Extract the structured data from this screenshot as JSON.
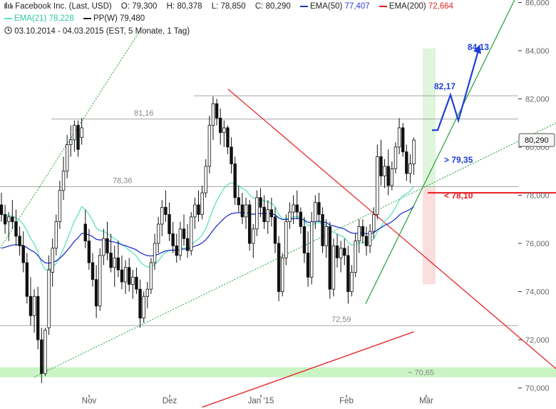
{
  "header": {
    "title": "Facebook Inc. (Last, USD)",
    "open": "O: 79,300",
    "high": "H: 80,378",
    "low": "L: 78,850",
    "close": "C: 80,290",
    "ema50_label": "EMA(50)",
    "ema50_value": "77,407",
    "ema200_label": "EMA(200)",
    "ema200_value": "72,664",
    "ema21_label": "EMA(21)",
    "ema21_value": "78,228",
    "pp_label": "PP(W)",
    "pp_value": "79,480",
    "range": "03.10.2014 - 04.03.2015 (EST, 5 Monate, 1 Tag)"
  },
  "colors": {
    "candle": "#111111",
    "ema21": "#5fe3c3",
    "ema50": "#2233cc",
    "ema200": "#e8191e",
    "channel": "#22a033",
    "trendline": "#e8191e",
    "target": "#1d3fd8",
    "support_zone": "#b8f0b0"
  },
  "chart_data": {
    "type": "candlestick",
    "ylim": [
      69.5,
      86.5
    ],
    "yticks": [
      "70,000",
      "72,000",
      "74,000",
      "76,000",
      "78,000",
      "80,000",
      "82,000",
      "84,000",
      "86,000"
    ],
    "ytick_values": [
      70,
      72,
      74,
      76,
      78,
      80,
      82,
      84,
      86
    ],
    "xticks": [
      "Nov",
      "Dez",
      "Jan '15",
      "Feb",
      "Mär"
    ],
    "last_price_label": "80,290",
    "last_price": 80.29,
    "levels": [
      {
        "label": "81,16",
        "value": 81.16
      },
      {
        "label": "78,36",
        "value": 78.36
      },
      {
        "label": "72,59",
        "value": 72.59
      },
      {
        "label": "~ 70,65",
        "value": 70.65
      }
    ],
    "annotations": [
      {
        "label": "84,13",
        "value": 84.13
      },
      {
        "label": "82,17",
        "value": 82.17
      },
      {
        "label": "> 79,35",
        "value": 79.35
      },
      {
        "label": "< 78,10",
        "value": 78.1
      }
    ],
    "candles": [
      {
        "o": 77.6,
        "h": 78.1,
        "l": 76.9,
        "c": 77.2
      },
      {
        "o": 77.2,
        "h": 77.6,
        "l": 76.4,
        "c": 76.8
      },
      {
        "o": 76.9,
        "h": 77.3,
        "l": 76.1,
        "c": 77.1
      },
      {
        "o": 77.1,
        "h": 77.8,
        "l": 76.6,
        "c": 76.9
      },
      {
        "o": 76.9,
        "h": 77.4,
        "l": 75.9,
        "c": 76.3
      },
      {
        "o": 76.3,
        "h": 76.7,
        "l": 75.5,
        "c": 75.9
      },
      {
        "o": 75.9,
        "h": 76.5,
        "l": 74.8,
        "c": 75.2
      },
      {
        "o": 75.2,
        "h": 75.6,
        "l": 73.5,
        "c": 73.8
      },
      {
        "o": 73.8,
        "h": 74.6,
        "l": 72.6,
        "c": 73.0
      },
      {
        "o": 73.0,
        "h": 74.1,
        "l": 72.3,
        "c": 73.8
      },
      {
        "o": 73.8,
        "h": 74.2,
        "l": 71.6,
        "c": 72.0
      },
      {
        "o": 72.0,
        "h": 72.5,
        "l": 70.2,
        "c": 70.6
      },
      {
        "o": 70.6,
        "h": 72.5,
        "l": 70.5,
        "c": 72.4
      },
      {
        "o": 72.5,
        "h": 75.5,
        "l": 72.2,
        "c": 74.9
      },
      {
        "o": 74.8,
        "h": 76.2,
        "l": 74.2,
        "c": 75.8
      },
      {
        "o": 75.8,
        "h": 77.2,
        "l": 75.5,
        "c": 76.9
      },
      {
        "o": 76.9,
        "h": 78.6,
        "l": 76.6,
        "c": 78.2
      },
      {
        "o": 78.2,
        "h": 79.6,
        "l": 77.8,
        "c": 79.0
      },
      {
        "o": 79.0,
        "h": 80.5,
        "l": 78.7,
        "c": 80.1
      },
      {
        "o": 80.1,
        "h": 80.9,
        "l": 79.6,
        "c": 80.3
      },
      {
        "o": 80.3,
        "h": 81.1,
        "l": 79.8,
        "c": 80.9
      },
      {
        "o": 80.9,
        "h": 81.1,
        "l": 79.6,
        "c": 79.9
      },
      {
        "o": 80.4,
        "h": 81.2,
        "l": 80.1,
        "c": 80.8
      },
      {
        "o": 76.8,
        "h": 77.4,
        "l": 75.8,
        "c": 76.1
      },
      {
        "o": 76.1,
        "h": 76.6,
        "l": 74.9,
        "c": 75.2
      },
      {
        "o": 75.2,
        "h": 75.6,
        "l": 74.2,
        "c": 74.5
      },
      {
        "o": 74.5,
        "h": 75.1,
        "l": 72.9,
        "c": 73.4
      },
      {
        "o": 73.4,
        "h": 75.8,
        "l": 73.2,
        "c": 75.5
      },
      {
        "o": 75.5,
        "h": 76.6,
        "l": 75.1,
        "c": 76.2
      },
      {
        "o": 76.2,
        "h": 76.9,
        "l": 75.3,
        "c": 75.6
      },
      {
        "o": 75.6,
        "h": 76.4,
        "l": 74.8,
        "c": 75.0
      },
      {
        "o": 75.0,
        "h": 75.9,
        "l": 74.2,
        "c": 75.4
      },
      {
        "o": 75.4,
        "h": 76.1,
        "l": 74.6,
        "c": 74.9
      },
      {
        "o": 74.9,
        "h": 75.5,
        "l": 74.1,
        "c": 74.4
      },
      {
        "o": 74.4,
        "h": 75.3,
        "l": 73.9,
        "c": 75.0
      },
      {
        "o": 75.0,
        "h": 75.4,
        "l": 74.0,
        "c": 74.3
      },
      {
        "o": 74.3,
        "h": 74.9,
        "l": 73.7,
        "c": 74.6
      },
      {
        "o": 74.6,
        "h": 75.0,
        "l": 73.9,
        "c": 74.1
      },
      {
        "o": 74.1,
        "h": 74.5,
        "l": 72.5,
        "c": 72.9
      },
      {
        "o": 72.9,
        "h": 74.0,
        "l": 72.7,
        "c": 73.8
      },
      {
        "o": 73.8,
        "h": 74.4,
        "l": 73.3,
        "c": 74.1
      },
      {
        "o": 74.1,
        "h": 75.4,
        "l": 73.9,
        "c": 75.2
      },
      {
        "o": 75.2,
        "h": 76.4,
        "l": 74.9,
        "c": 76.0
      },
      {
        "o": 76.0,
        "h": 77.1,
        "l": 75.6,
        "c": 76.8
      },
      {
        "o": 76.8,
        "h": 77.8,
        "l": 76.3,
        "c": 77.5
      },
      {
        "o": 77.5,
        "h": 78.2,
        "l": 76.9,
        "c": 77.2
      },
      {
        "o": 77.2,
        "h": 77.7,
        "l": 76.1,
        "c": 76.4
      },
      {
        "o": 76.4,
        "h": 76.9,
        "l": 75.6,
        "c": 75.9
      },
      {
        "o": 75.9,
        "h": 76.4,
        "l": 75.2,
        "c": 75.5
      },
      {
        "o": 75.5,
        "h": 76.9,
        "l": 75.3,
        "c": 76.6
      },
      {
        "o": 76.6,
        "h": 77.2,
        "l": 75.9,
        "c": 76.2
      },
      {
        "o": 76.2,
        "h": 76.8,
        "l": 75.4,
        "c": 75.7
      },
      {
        "o": 75.7,
        "h": 77.3,
        "l": 75.5,
        "c": 77.1
      },
      {
        "o": 77.1,
        "h": 77.9,
        "l": 76.6,
        "c": 77.6
      },
      {
        "o": 77.6,
        "h": 78.2,
        "l": 76.9,
        "c": 77.2
      },
      {
        "o": 77.2,
        "h": 78.4,
        "l": 77.0,
        "c": 78.1
      },
      {
        "o": 78.1,
        "h": 79.5,
        "l": 77.9,
        "c": 79.2
      },
      {
        "o": 79.2,
        "h": 81.3,
        "l": 78.9,
        "c": 80.9
      },
      {
        "o": 80.9,
        "h": 82.1,
        "l": 80.3,
        "c": 81.8
      },
      {
        "o": 81.8,
        "h": 82.0,
        "l": 80.9,
        "c": 81.2
      },
      {
        "o": 81.2,
        "h": 81.6,
        "l": 80.1,
        "c": 80.6
      },
      {
        "o": 80.6,
        "h": 81.1,
        "l": 80.0,
        "c": 80.8
      },
      {
        "o": 80.8,
        "h": 80.9,
        "l": 79.7,
        "c": 80.0
      },
      {
        "o": 80.0,
        "h": 80.4,
        "l": 78.9,
        "c": 79.3
      },
      {
        "o": 79.3,
        "h": 79.6,
        "l": 77.6,
        "c": 77.9
      },
      {
        "o": 77.9,
        "h": 78.4,
        "l": 77.3,
        "c": 77.6
      },
      {
        "o": 77.6,
        "h": 78.1,
        "l": 76.8,
        "c": 77.1
      },
      {
        "o": 77.1,
        "h": 77.9,
        "l": 76.6,
        "c": 77.6
      },
      {
        "o": 77.6,
        "h": 77.8,
        "l": 75.7,
        "c": 76.0
      },
      {
        "o": 76.0,
        "h": 76.8,
        "l": 75.4,
        "c": 76.6
      },
      {
        "o": 76.6,
        "h": 78.2,
        "l": 76.3,
        "c": 77.9
      },
      {
        "o": 77.9,
        "h": 78.3,
        "l": 77.1,
        "c": 77.5
      },
      {
        "o": 77.5,
        "h": 78.0,
        "l": 76.6,
        "c": 76.9
      },
      {
        "o": 76.9,
        "h": 77.8,
        "l": 76.4,
        "c": 77.4
      },
      {
        "o": 77.4,
        "h": 77.9,
        "l": 76.7,
        "c": 77.1
      },
      {
        "o": 77.1,
        "h": 77.5,
        "l": 75.6,
        "c": 76.0
      },
      {
        "o": 76.0,
        "h": 76.3,
        "l": 73.6,
        "c": 74.0
      },
      {
        "o": 74.0,
        "h": 75.6,
        "l": 73.8,
        "c": 75.4
      },
      {
        "o": 75.4,
        "h": 77.2,
        "l": 75.1,
        "c": 76.9
      },
      {
        "o": 76.9,
        "h": 77.7,
        "l": 76.6,
        "c": 77.3
      },
      {
        "o": 77.3,
        "h": 78.0,
        "l": 76.8,
        "c": 77.6
      },
      {
        "o": 77.6,
        "h": 78.2,
        "l": 77.0,
        "c": 77.3
      },
      {
        "o": 77.3,
        "h": 77.5,
        "l": 76.4,
        "c": 76.7
      },
      {
        "o": 76.7,
        "h": 77.1,
        "l": 75.2,
        "c": 75.6
      },
      {
        "o": 75.6,
        "h": 76.5,
        "l": 74.2,
        "c": 74.6
      },
      {
        "o": 74.6,
        "h": 77.3,
        "l": 74.3,
        "c": 76.9
      },
      {
        "o": 76.9,
        "h": 78.0,
        "l": 76.6,
        "c": 77.7
      },
      {
        "o": 77.7,
        "h": 78.1,
        "l": 76.9,
        "c": 77.2
      },
      {
        "o": 77.2,
        "h": 77.5,
        "l": 75.6,
        "c": 75.9
      },
      {
        "o": 75.9,
        "h": 77.0,
        "l": 75.4,
        "c": 76.7
      },
      {
        "o": 76.7,
        "h": 76.9,
        "l": 73.7,
        "c": 74.1
      },
      {
        "o": 74.1,
        "h": 76.2,
        "l": 73.8,
        "c": 75.9
      },
      {
        "o": 75.9,
        "h": 76.4,
        "l": 75.0,
        "c": 75.4
      },
      {
        "o": 75.4,
        "h": 76.1,
        "l": 74.8,
        "c": 75.8
      },
      {
        "o": 75.8,
        "h": 76.2,
        "l": 75.1,
        "c": 75.5
      },
      {
        "o": 75.5,
        "h": 75.9,
        "l": 73.5,
        "c": 74.0
      },
      {
        "o": 74.0,
        "h": 75.1,
        "l": 73.8,
        "c": 74.8
      },
      {
        "o": 74.8,
        "h": 76.4,
        "l": 74.6,
        "c": 76.1
      },
      {
        "o": 76.1,
        "h": 77.0,
        "l": 75.6,
        "c": 76.7
      },
      {
        "o": 76.7,
        "h": 77.0,
        "l": 76.0,
        "c": 76.3
      },
      {
        "o": 76.3,
        "h": 76.7,
        "l": 75.5,
        "c": 75.9
      },
      {
        "o": 75.9,
        "h": 76.8,
        "l": 75.6,
        "c": 76.5
      },
      {
        "o": 76.5,
        "h": 77.5,
        "l": 76.2,
        "c": 77.2
      },
      {
        "o": 77.2,
        "h": 80.1,
        "l": 77.0,
        "c": 79.6
      },
      {
        "o": 79.6,
        "h": 80.3,
        "l": 78.4,
        "c": 78.8
      },
      {
        "o": 78.8,
        "h": 79.5,
        "l": 78.3,
        "c": 79.2
      },
      {
        "o": 79.2,
        "h": 79.9,
        "l": 78.0,
        "c": 78.4
      },
      {
        "o": 78.4,
        "h": 79.4,
        "l": 78.2,
        "c": 79.1
      },
      {
        "o": 79.1,
        "h": 80.2,
        "l": 78.9,
        "c": 80.0
      },
      {
        "o": 80.0,
        "h": 81.2,
        "l": 79.7,
        "c": 80.8
      },
      {
        "o": 80.8,
        "h": 81.0,
        "l": 79.6,
        "c": 79.8
      },
      {
        "o": 79.8,
        "h": 80.1,
        "l": 78.6,
        "c": 78.9
      },
      {
        "o": 78.9,
        "h": 79.7,
        "l": 78.5,
        "c": 79.3
      },
      {
        "o": 79.3,
        "h": 80.4,
        "l": 78.85,
        "c": 80.29
      }
    ]
  }
}
